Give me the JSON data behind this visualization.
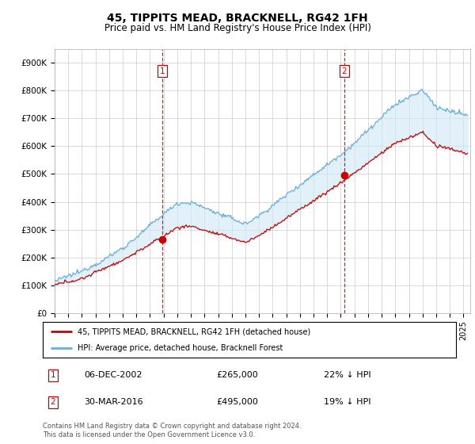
{
  "title": "45, TIPPITS MEAD, BRACKNELL, RG42 1FH",
  "subtitle": "Price paid vs. HM Land Registry's House Price Index (HPI)",
  "ylim": [
    0,
    950000
  ],
  "yticks": [
    0,
    100000,
    200000,
    300000,
    400000,
    500000,
    600000,
    700000,
    800000,
    900000
  ],
  "ytick_labels": [
    "£0",
    "£100K",
    "£200K",
    "£300K",
    "£400K",
    "£500K",
    "£600K",
    "£700K",
    "£800K",
    "£900K"
  ],
  "hpi_color": "#6aaed6",
  "hpi_fill_color": "#d0e8f5",
  "price_color": "#cc0000",
  "vline_color": "#cc0000",
  "background_color": "#ffffff",
  "marker1_year": 2002.917,
  "marker1_price": 265000,
  "marker1_label": "06-DEC-2002",
  "marker1_amount": "£265,000",
  "marker1_pct": "22% ↓ HPI",
  "marker2_year": 2016.25,
  "marker2_price": 495000,
  "marker2_label": "30-MAR-2016",
  "marker2_amount": "£495,000",
  "marker2_pct": "19% ↓ HPI",
  "legend1": "45, TIPPITS MEAD, BRACKNELL, RG42 1FH (detached house)",
  "legend2": "HPI: Average price, detached house, Bracknell Forest",
  "footer": "Contains HM Land Registry data © Crown copyright and database right 2024.\nThis data is licensed under the Open Government Licence v3.0.",
  "title_fontsize": 10,
  "subtitle_fontsize": 8.5,
  "tick_fontsize": 7.5,
  "label_fontsize": 8
}
